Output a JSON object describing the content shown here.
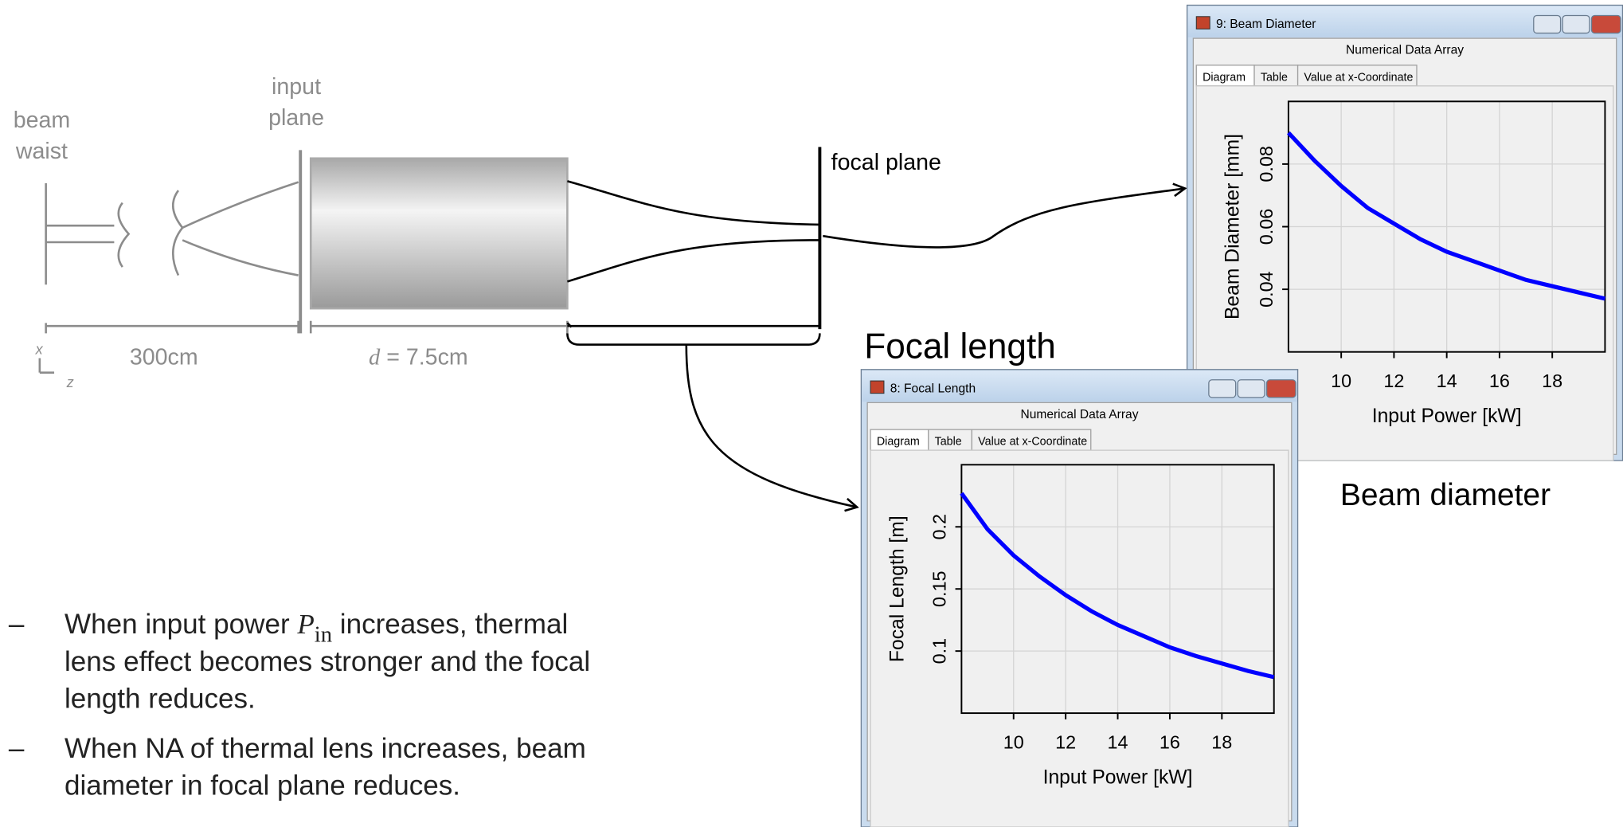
{
  "diagram": {
    "beam_waist": [
      "beam",
      "waist"
    ],
    "input_plane": [
      "input",
      "plane"
    ],
    "focal_plane": "focal plane",
    "distance": "300cm",
    "length_var": "d",
    "length_rest": " = 7.5cm",
    "axis_x": "x",
    "axis_z": "z"
  },
  "notes": [
    {
      "marker": "–",
      "before": "When input power ",
      "symbol": "P",
      "subscript": "in",
      "lines": [
        " increases, thermal",
        "lens effect becomes stronger and the focal",
        "length reduces."
      ]
    },
    {
      "marker": "–",
      "lines": [
        "When NA of thermal lens increases, beam",
        "diameter in focal plane reduces."
      ]
    }
  ],
  "chart_data": [
    {
      "type": "line",
      "caption": "Beam diameter",
      "title": "9: Beam Diameter",
      "subtitle": "Numerical Data Array",
      "tabs": [
        "Diagram",
        "Table",
        "Value at x-Coordinate"
      ],
      "xlabel": "Input Power [kW]",
      "ylabel": "Beam Diameter [mm]",
      "x": [
        8,
        9,
        10,
        11,
        12,
        13,
        14,
        15,
        16,
        17,
        18,
        19,
        20
      ],
      "series": [
        {
          "color": "#0000ff",
          "values": [
            0.09,
            0.081,
            0.073,
            0.066,
            0.061,
            0.056,
            0.052,
            0.049,
            0.046,
            0.043,
            0.041,
            0.039,
            0.037
          ]
        }
      ],
      "xlim": [
        8,
        20
      ],
      "ylim": [
        0.02,
        0.1
      ],
      "xticks": [
        10,
        12,
        14,
        16,
        18
      ],
      "yticks": [
        0.04,
        0.06,
        0.08
      ],
      "grid": true
    },
    {
      "type": "line",
      "caption": "Focal length",
      "title": "8: Focal Length",
      "subtitle": "Numerical Data Array",
      "tabs": [
        "Diagram",
        "Table",
        "Value at x-Coordinate"
      ],
      "xlabel": "Input Power [kW]",
      "ylabel": "Focal Length [m]",
      "x": [
        8,
        9,
        10,
        11,
        12,
        13,
        14,
        15,
        16,
        17,
        18,
        19,
        20
      ],
      "series": [
        {
          "color": "#0000ff",
          "values": [
            0.227,
            0.198,
            0.177,
            0.16,
            0.145,
            0.132,
            0.121,
            0.112,
            0.103,
            0.096,
            0.09,
            0.084,
            0.079
          ]
        }
      ],
      "xlim": [
        8,
        20
      ],
      "ylim": [
        0.05,
        0.25
      ],
      "xticks": [
        10,
        12,
        14,
        16,
        18
      ],
      "yticks": [
        0.1,
        0.15,
        0.2
      ],
      "grid": true
    }
  ]
}
